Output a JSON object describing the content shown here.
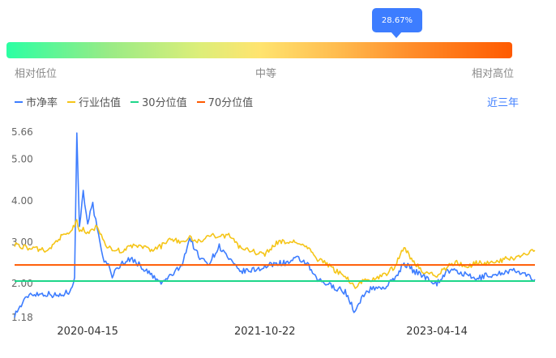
{
  "gauge": {
    "percentile_label": "28.67%",
    "percentile": 0.2867,
    "low_label": "相对低位",
    "mid_label": "中等",
    "high_label": "相对高位"
  },
  "legend": {
    "items": [
      {
        "label": "市净率",
        "color": "#3d7dff"
      },
      {
        "label": "行业估值",
        "color": "#f5c518"
      },
      {
        "label": "30分位值",
        "color": "#1ed68a"
      },
      {
        "label": "70分位值",
        "color": "#ff5a00"
      }
    ],
    "period_label": "近三年"
  },
  "chart_data": {
    "type": "line",
    "title": "",
    "xlabel": "",
    "ylabel": "",
    "ylim": [
      1.18,
      5.66
    ],
    "y_ticks": [
      "5.66",
      "5.00",
      "4.00",
      "3.00",
      "2.00",
      "1.18"
    ],
    "x_ticks": [
      "2020-04-15",
      "2021-10-22",
      "2023-04-14"
    ],
    "x_dates": [
      "2019-08-30",
      "2019-10-15",
      "2019-12-15",
      "2020-01-15",
      "2020-02-15",
      "2020-03-05",
      "2020-03-12",
      "2020-03-20",
      "2020-04-01",
      "2020-04-15",
      "2020-05-01",
      "2020-05-15",
      "2020-06-01",
      "2020-06-15",
      "2020-07-01",
      "2020-08-01",
      "2020-09-01",
      "2020-10-01",
      "2020-11-01",
      "2020-12-01",
      "2021-01-01",
      "2021-02-01",
      "2021-03-01",
      "2021-04-01",
      "2021-05-01",
      "2021-06-01",
      "2021-07-01",
      "2021-08-01",
      "2021-09-01",
      "2021-10-22",
      "2021-12-01",
      "2022-01-01",
      "2022-02-01",
      "2022-03-01",
      "2022-04-01",
      "2022-05-01",
      "2022-06-01",
      "2022-07-01",
      "2022-08-01",
      "2022-09-01",
      "2022-10-01",
      "2022-10-31",
      "2022-12-01",
      "2023-01-01",
      "2023-02-01",
      "2023-03-01",
      "2023-04-14",
      "2023-05-15",
      "2023-06-15",
      "2023-07-15",
      "2023-08-15",
      "2023-09-15",
      "2023-10-15",
      "2023-11-15",
      "2023-12-15",
      "2024-01-15",
      "2024-02-15"
    ],
    "series": [
      {
        "name": "市净率",
        "color": "#3d7dff",
        "values": [
          1.25,
          1.75,
          1.75,
          1.7,
          1.8,
          2.1,
          5.66,
          3.4,
          4.2,
          3.5,
          3.9,
          3.3,
          2.6,
          2.5,
          2.2,
          2.5,
          2.6,
          2.4,
          2.2,
          2.0,
          2.2,
          2.4,
          3.1,
          2.6,
          2.5,
          2.9,
          2.6,
          2.3,
          2.3,
          2.4,
          2.5,
          2.5,
          2.6,
          2.5,
          2.1,
          2.0,
          1.9,
          1.8,
          1.3,
          1.8,
          1.9,
          1.9,
          2.1,
          2.5,
          2.3,
          2.2,
          2.0,
          2.3,
          2.3,
          2.2,
          2.1,
          2.2,
          2.2,
          2.3,
          2.3,
          2.2,
          2.1
        ]
      },
      {
        "name": "行业估值",
        "color": "#f5c518",
        "values": [
          2.95,
          2.85,
          2.8,
          3.1,
          3.2,
          3.4,
          3.5,
          3.3,
          3.3,
          3.2,
          3.3,
          3.4,
          3.1,
          2.9,
          2.8,
          2.8,
          2.9,
          2.9,
          2.8,
          2.9,
          3.1,
          3.0,
          3.1,
          3.0,
          3.2,
          3.1,
          3.2,
          2.9,
          2.8,
          2.7,
          3.0,
          3.0,
          3.0,
          2.9,
          2.6,
          2.5,
          2.3,
          2.2,
          1.9,
          2.1,
          2.1,
          2.2,
          2.4,
          2.9,
          2.5,
          2.3,
          2.2,
          2.4,
          2.5,
          2.4,
          2.5,
          2.5,
          2.5,
          2.6,
          2.6,
          2.7,
          2.8
        ]
      },
      {
        "name": "30分位值",
        "color": "#1ed68a",
        "values": [
          2.06,
          2.06
        ]
      },
      {
        "name": "70分位值",
        "color": "#ff5a00",
        "values": [
          2.45,
          2.45
        ]
      }
    ]
  }
}
